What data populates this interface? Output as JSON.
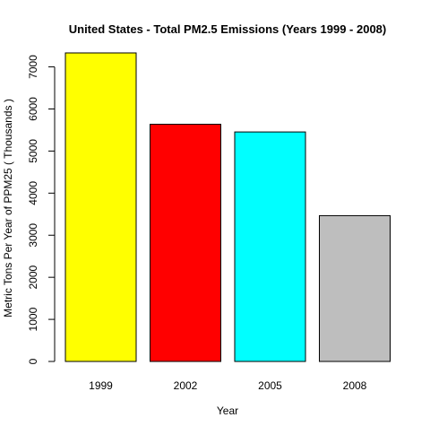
{
  "chart_data": {
    "type": "bar",
    "title": "United States - Total PM2.5 Emissions (Years 1999 - 2008)",
    "xlabel": "Year",
    "ylabel": "Metric Tons Per Year of PPM25 ( Thousands )",
    "categories": [
      "1999",
      "2002",
      "2005",
      "2008"
    ],
    "values": [
      7332,
      5636,
      5454,
      3465
    ],
    "colors": [
      "#ffff00",
      "#ff0000",
      "#00ffff",
      "#bebebe"
    ],
    "bar_border_color": "#000000",
    "ylim": [
      0,
      7332
    ],
    "yticks": [
      0,
      1000,
      2000,
      3000,
      4000,
      5000,
      6000,
      7000
    ],
    "grid": false,
    "legend": "none"
  }
}
